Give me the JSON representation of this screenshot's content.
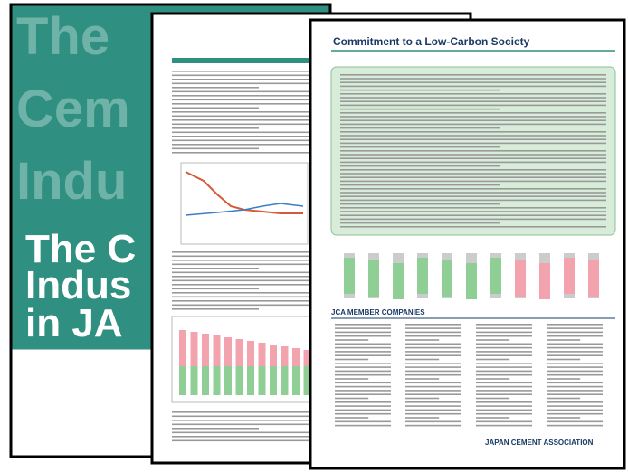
{
  "cover": {
    "faded_lines": [
      "The",
      "Cem",
      "Indu"
    ],
    "lines": [
      "The C",
      "Indus",
      "in JA"
    ]
  },
  "page3": {
    "title": "Commitment to a Low-Carbon Society",
    "members_heading": "JCA MEMBER COMPANIES",
    "footer": "JAPAN CEMENT ASSOCIATION"
  }
}
